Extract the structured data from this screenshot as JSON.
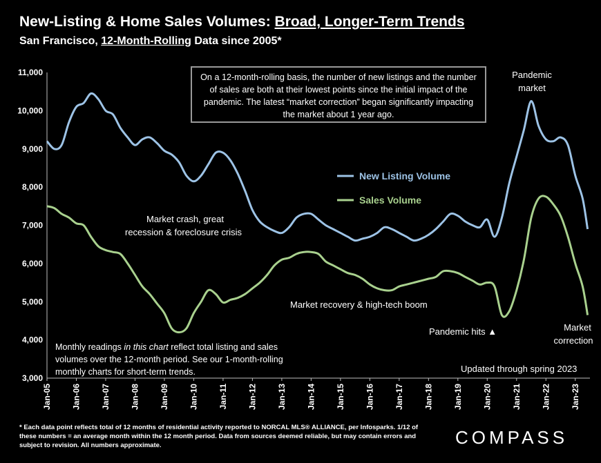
{
  "header": {
    "title_prefix": "New-Listing & Home Sales Volumes: ",
    "title_underlined": "Broad, Longer-Term Trends",
    "subtitle_prefix": "San Francisco, ",
    "subtitle_underlined": "12-Month-Rolling",
    "subtitle_suffix": " Data since 2005*"
  },
  "callout_text": "On a 12-month-rolling basis, the number of new listings and the number of sales are both at their lowest points since the initial impact of the pandemic. The latest “market correction” began significantly impacting the market about 1 year ago.",
  "monthly_note": {
    "part1": "Monthly readings ",
    "italic": "in this chart",
    "part2": " reflect total listing and sales volumes over the 12-month period. See our 1-month-rolling monthly charts for short-term trends."
  },
  "footnote": "* Each data point reflects total of 12 months of residential activity reported to NORCAL MLS® ALLIANCE, per Infosparks. 1/12 of these numbers = an average month within the 12 month period. Data from sources deemed reliable, but may contain errors and subject to revision. All numbers approximate.",
  "brand": "COMPASS",
  "colors": {
    "new_listing": "#9dc3e6",
    "sales": "#a9d18e",
    "callout_border": "#9a9a9a"
  },
  "chart_data": {
    "type": "line",
    "ylim": [
      3000,
      11000
    ],
    "yticks": [
      "3,000",
      "4,000",
      "5,000",
      "6,000",
      "7,000",
      "8,000",
      "9,000",
      "10,000",
      "11,000"
    ],
    "xticks": [
      "Jan-05",
      "Jan-06",
      "Jan-07",
      "Jan-08",
      "Jan-09",
      "Jan-10",
      "Jan-11",
      "Jan-12",
      "Jan-13",
      "Jan-14",
      "Jan-15",
      "Jan-16",
      "Jan-17",
      "Jan-18",
      "Jan-19",
      "Jan-20",
      "Jan-21",
      "Jan-22",
      "Jan-23"
    ],
    "grid": false,
    "legend_position": "center-right",
    "series": [
      {
        "name": "New Listing Volume",
        "color": "#9dc3e6",
        "points": [
          [
            2005.0,
            9200
          ],
          [
            2005.25,
            9000
          ],
          [
            2005.5,
            9100
          ],
          [
            2005.75,
            9700
          ],
          [
            2006.0,
            10100
          ],
          [
            2006.25,
            10200
          ],
          [
            2006.5,
            10450
          ],
          [
            2006.75,
            10300
          ],
          [
            2007.0,
            10000
          ],
          [
            2007.25,
            9900
          ],
          [
            2007.5,
            9550
          ],
          [
            2007.75,
            9300
          ],
          [
            2008.0,
            9100
          ],
          [
            2008.25,
            9250
          ],
          [
            2008.5,
            9300
          ],
          [
            2008.75,
            9150
          ],
          [
            2009.0,
            8950
          ],
          [
            2009.25,
            8850
          ],
          [
            2009.5,
            8650
          ],
          [
            2009.75,
            8300
          ],
          [
            2010.0,
            8150
          ],
          [
            2010.25,
            8300
          ],
          [
            2010.5,
            8600
          ],
          [
            2010.75,
            8900
          ],
          [
            2011.0,
            8900
          ],
          [
            2011.25,
            8700
          ],
          [
            2011.5,
            8350
          ],
          [
            2011.75,
            7900
          ],
          [
            2012.0,
            7400
          ],
          [
            2012.25,
            7100
          ],
          [
            2012.5,
            6950
          ],
          [
            2012.75,
            6850
          ],
          [
            2013.0,
            6800
          ],
          [
            2013.25,
            6950
          ],
          [
            2013.5,
            7200
          ],
          [
            2013.75,
            7300
          ],
          [
            2014.0,
            7300
          ],
          [
            2014.25,
            7150
          ],
          [
            2014.5,
            7000
          ],
          [
            2014.75,
            6900
          ],
          [
            2015.0,
            6800
          ],
          [
            2015.25,
            6700
          ],
          [
            2015.5,
            6600
          ],
          [
            2015.75,
            6650
          ],
          [
            2016.0,
            6700
          ],
          [
            2016.25,
            6800
          ],
          [
            2016.5,
            6950
          ],
          [
            2016.75,
            6900
          ],
          [
            2017.0,
            6800
          ],
          [
            2017.25,
            6700
          ],
          [
            2017.5,
            6600
          ],
          [
            2017.75,
            6650
          ],
          [
            2018.0,
            6750
          ],
          [
            2018.25,
            6900
          ],
          [
            2018.5,
            7100
          ],
          [
            2018.75,
            7300
          ],
          [
            2019.0,
            7250
          ],
          [
            2019.25,
            7100
          ],
          [
            2019.5,
            7000
          ],
          [
            2019.75,
            6950
          ],
          [
            2020.0,
            7150
          ],
          [
            2020.25,
            6700
          ],
          [
            2020.5,
            7200
          ],
          [
            2020.75,
            8100
          ],
          [
            2021.0,
            8800
          ],
          [
            2021.25,
            9500
          ],
          [
            2021.5,
            10250
          ],
          [
            2021.75,
            9600
          ],
          [
            2022.0,
            9250
          ],
          [
            2022.25,
            9200
          ],
          [
            2022.5,
            9300
          ],
          [
            2022.75,
            9100
          ],
          [
            2023.0,
            8300
          ],
          [
            2023.25,
            7700
          ],
          [
            2023.42,
            6900
          ]
        ]
      },
      {
        "name": "Sales Volume",
        "color": "#a9d18e",
        "points": [
          [
            2005.0,
            7500
          ],
          [
            2005.25,
            7450
          ],
          [
            2005.5,
            7300
          ],
          [
            2005.75,
            7200
          ],
          [
            2006.0,
            7050
          ],
          [
            2006.25,
            7000
          ],
          [
            2006.5,
            6700
          ],
          [
            2006.75,
            6450
          ],
          [
            2007.0,
            6350
          ],
          [
            2007.25,
            6300
          ],
          [
            2007.5,
            6250
          ],
          [
            2007.75,
            6000
          ],
          [
            2008.0,
            5700
          ],
          [
            2008.25,
            5400
          ],
          [
            2008.5,
            5200
          ],
          [
            2008.75,
            4950
          ],
          [
            2009.0,
            4700
          ],
          [
            2009.25,
            4300
          ],
          [
            2009.5,
            4200
          ],
          [
            2009.75,
            4300
          ],
          [
            2010.0,
            4700
          ],
          [
            2010.25,
            5000
          ],
          [
            2010.5,
            5300
          ],
          [
            2010.75,
            5200
          ],
          [
            2011.0,
            4980
          ],
          [
            2011.25,
            5050
          ],
          [
            2011.5,
            5100
          ],
          [
            2011.75,
            5200
          ],
          [
            2012.0,
            5350
          ],
          [
            2012.25,
            5500
          ],
          [
            2012.5,
            5700
          ],
          [
            2012.75,
            5950
          ],
          [
            2013.0,
            6100
          ],
          [
            2013.25,
            6150
          ],
          [
            2013.5,
            6250
          ],
          [
            2013.75,
            6300
          ],
          [
            2014.0,
            6300
          ],
          [
            2014.25,
            6250
          ],
          [
            2014.5,
            6050
          ],
          [
            2014.75,
            5950
          ],
          [
            2015.0,
            5850
          ],
          [
            2015.25,
            5750
          ],
          [
            2015.5,
            5700
          ],
          [
            2015.75,
            5600
          ],
          [
            2016.0,
            5450
          ],
          [
            2016.25,
            5350
          ],
          [
            2016.5,
            5300
          ],
          [
            2016.75,
            5300
          ],
          [
            2017.0,
            5400
          ],
          [
            2017.25,
            5450
          ],
          [
            2017.5,
            5500
          ],
          [
            2017.75,
            5550
          ],
          [
            2018.0,
            5600
          ],
          [
            2018.25,
            5650
          ],
          [
            2018.5,
            5800
          ],
          [
            2018.75,
            5800
          ],
          [
            2019.0,
            5750
          ],
          [
            2019.25,
            5650
          ],
          [
            2019.5,
            5550
          ],
          [
            2019.75,
            5450
          ],
          [
            2020.0,
            5500
          ],
          [
            2020.25,
            5400
          ],
          [
            2020.5,
            4650
          ],
          [
            2020.75,
            4750
          ],
          [
            2021.0,
            5300
          ],
          [
            2021.25,
            6100
          ],
          [
            2021.5,
            7200
          ],
          [
            2021.75,
            7700
          ],
          [
            2022.0,
            7750
          ],
          [
            2022.25,
            7550
          ],
          [
            2022.5,
            7250
          ],
          [
            2022.75,
            6700
          ],
          [
            2023.0,
            6000
          ],
          [
            2023.25,
            5400
          ],
          [
            2023.42,
            4650
          ]
        ]
      }
    ],
    "annotations": {
      "pandemic_market": [
        "Pandemic",
        "market"
      ],
      "market_crash": [
        "Market crash,  great",
        "recession & foreclosure crisis"
      ],
      "market_recovery": "Market recovery & high-tech boom",
      "pandemic_hits": "Pandemic hits ▲",
      "market_correction": [
        "Market",
        "correction"
      ],
      "updated": "Updated through spring 2023"
    }
  }
}
